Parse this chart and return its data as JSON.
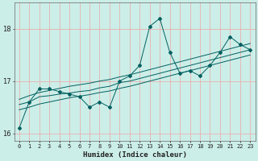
{
  "title": "",
  "xlabel": "Humidex (Indice chaleur)",
  "ylabel": "",
  "bg_color": "#cceee8",
  "grid_color": "#e8b0b0",
  "line_color": "#006060",
  "x": [
    0,
    1,
    2,
    3,
    4,
    5,
    6,
    7,
    8,
    9,
    10,
    11,
    12,
    13,
    14,
    15,
    16,
    17,
    18,
    19,
    20,
    21,
    22,
    23
  ],
  "y_data": [
    16.1,
    16.6,
    16.85,
    16.85,
    16.8,
    16.75,
    16.7,
    16.5,
    16.6,
    16.5,
    17.0,
    17.1,
    17.3,
    18.05,
    18.2,
    17.55,
    17.15,
    17.2,
    17.1,
    17.3,
    17.55,
    17.85,
    17.7,
    17.6
  ],
  "y_trend1": [
    16.55,
    16.6,
    16.7,
    16.72,
    16.75,
    16.77,
    16.8,
    16.82,
    16.87,
    16.9,
    16.97,
    17.0,
    17.05,
    17.1,
    17.15,
    17.2,
    17.25,
    17.3,
    17.35,
    17.4,
    17.45,
    17.5,
    17.55,
    17.6
  ],
  "y_trend2": [
    16.65,
    16.72,
    16.78,
    16.82,
    16.86,
    16.9,
    16.93,
    16.96,
    17.0,
    17.03,
    17.08,
    17.12,
    17.17,
    17.22,
    17.27,
    17.32,
    17.37,
    17.42,
    17.47,
    17.52,
    17.57,
    17.62,
    17.67,
    17.72
  ],
  "y_trend3": [
    16.45,
    16.5,
    16.56,
    16.6,
    16.64,
    16.68,
    16.71,
    16.74,
    16.78,
    16.81,
    16.86,
    16.9,
    16.95,
    17.0,
    17.05,
    17.1,
    17.15,
    17.2,
    17.25,
    17.3,
    17.35,
    17.4,
    17.45,
    17.5
  ],
  "ylim": [
    15.85,
    18.5
  ],
  "yticks": [
    16,
    17,
    18
  ],
  "xlim": [
    -0.5,
    23.5
  ],
  "figsize": [
    3.2,
    2.0
  ],
  "dpi": 100
}
